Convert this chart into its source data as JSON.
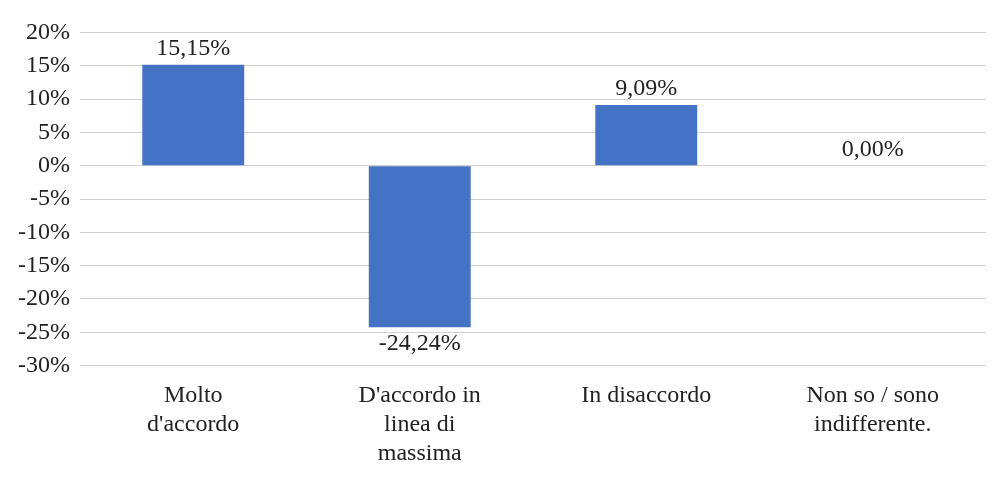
{
  "chart_data": {
    "type": "bar",
    "categories": [
      "Molto d'accordo",
      "D'accordo in linea di massima",
      "In disaccordo",
      "Non so / sono indifferente."
    ],
    "values": [
      15.15,
      -24.24,
      9.09,
      0
    ],
    "value_labels": [
      "15,15%",
      "-24,24%",
      "9,09%",
      "0,00%"
    ],
    "color": "#4472c4",
    "ylim": [
      -30,
      20
    ],
    "yticks": [
      {
        "value": 20,
        "label": "20%"
      },
      {
        "value": 15,
        "label": "15%"
      },
      {
        "value": 10,
        "label": "10%"
      },
      {
        "value": 5,
        "label": "5%"
      },
      {
        "value": 0,
        "label": "0%"
      },
      {
        "value": -5,
        "label": "-5%"
      },
      {
        "value": -10,
        "label": "-10%"
      },
      {
        "value": -15,
        "label": "-15%"
      },
      {
        "value": -20,
        "label": "-20%"
      },
      {
        "value": -25,
        "label": "-25%"
      },
      {
        "value": -30,
        "label": "-30%"
      }
    ],
    "grid": "y",
    "legend": false
  }
}
